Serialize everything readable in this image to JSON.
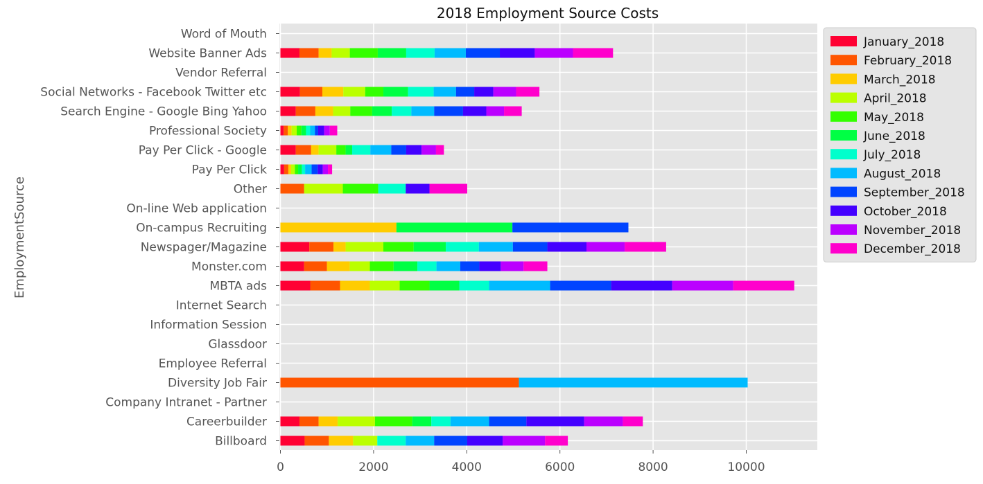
{
  "chart_data": {
    "type": "bar",
    "orientation": "horizontal",
    "stacked": true,
    "title": "2018 Employment Source Costs",
    "xlabel": "",
    "ylabel": "EmploymentSource",
    "xlim": [
      0,
      11550
    ],
    "xticks": [
      0,
      2000,
      4000,
      6000,
      8000,
      10000
    ],
    "xtick_labels": [
      "0",
      "2000",
      "4000",
      "6000",
      "8000",
      "10000"
    ],
    "grid": true,
    "legend_position": "right",
    "categories": [
      "Billboard",
      "Careerbuilder",
      "Company Intranet - Partner",
      "Diversity Job Fair",
      "Employee Referral",
      "Glassdoor",
      "Information Session",
      "Internet Search",
      "MBTA ads",
      "Monster.com",
      "Newspager/Magazine",
      "On-campus Recruiting",
      "On-line Web application",
      "Other",
      "Pay Per Click",
      "Pay Per Click - Google",
      "Professional Society",
      "Search Engine - Google Bing Yahoo",
      "Social Networks - Facebook Twitter etc",
      "Vendor Referral",
      "Website Banner Ads",
      "Word of Mouth"
    ],
    "series": [
      {
        "name": "January_2018",
        "color": "#ff0033",
        "values": [
          520,
          410,
          0,
          0,
          0,
          0,
          0,
          0,
          640,
          510,
          620,
          0,
          0,
          0,
          80,
          330,
          70,
          330,
          420,
          0,
          410,
          0
        ]
      },
      {
        "name": "February_2018",
        "color": "#ff5500",
        "values": [
          520,
          410,
          0,
          5120,
          0,
          0,
          0,
          0,
          640,
          490,
          520,
          0,
          0,
          510,
          90,
          330,
          90,
          420,
          480,
          0,
          410,
          0
        ]
      },
      {
        "name": "March_2018",
        "color": "#ffcc00",
        "values": [
          520,
          410,
          0,
          0,
          0,
          0,
          0,
          0,
          640,
          490,
          260,
          2490,
          0,
          0,
          60,
          160,
          80,
          380,
          450,
          0,
          280,
          0
        ]
      },
      {
        "name": "April_2018",
        "color": "#bbff00",
        "values": [
          520,
          800,
          0,
          0,
          0,
          0,
          0,
          0,
          640,
          430,
          810,
          0,
          0,
          830,
          80,
          380,
          110,
          370,
          470,
          0,
          390,
          0
        ]
      },
      {
        "name": "May_2018",
        "color": "#33ff00",
        "values": [
          0,
          800,
          0,
          0,
          0,
          0,
          0,
          0,
          640,
          510,
          650,
          0,
          0,
          760,
          70,
          200,
          100,
          470,
          390,
          0,
          600,
          0
        ]
      },
      {
        "name": "June_2018",
        "color": "#00ff44",
        "values": [
          0,
          410,
          0,
          0,
          0,
          0,
          0,
          0,
          640,
          510,
          690,
          2490,
          0,
          0,
          80,
          140,
          100,
          420,
          530,
          0,
          610,
          0
        ]
      },
      {
        "name": "July_2018",
        "color": "#00ffcc",
        "values": [
          610,
          410,
          0,
          0,
          0,
          0,
          0,
          0,
          640,
          410,
          710,
          0,
          0,
          590,
          70,
          390,
          90,
          420,
          550,
          0,
          610,
          0
        ]
      },
      {
        "name": "August_2018",
        "color": "#00bbff",
        "values": [
          610,
          830,
          0,
          4910,
          0,
          0,
          0,
          0,
          1310,
          510,
          730,
          0,
          0,
          0,
          140,
          450,
          100,
          490,
          480,
          0,
          670,
          0
        ]
      },
      {
        "name": "September_2018",
        "color": "#0044ff",
        "values": [
          710,
          800,
          0,
          0,
          0,
          0,
          0,
          0,
          1310,
          410,
          740,
          2490,
          0,
          0,
          130,
          320,
          70,
          620,
          390,
          0,
          730,
          0
        ]
      },
      {
        "name": "October_2018",
        "color": "#4400ff",
        "values": [
          760,
          1240,
          0,
          0,
          0,
          0,
          0,
          0,
          1310,
          460,
          840,
          0,
          0,
          510,
          110,
          330,
          130,
          500,
          410,
          0,
          750,
          0
        ]
      },
      {
        "name": "November_2018",
        "color": "#bb00ff",
        "values": [
          910,
          830,
          0,
          0,
          0,
          0,
          0,
          0,
          1310,
          490,
          820,
          0,
          0,
          0,
          110,
          310,
          120,
          380,
          490,
          0,
          820,
          0
        ]
      },
      {
        "name": "December_2018",
        "color": "#ff00cc",
        "values": [
          490,
          430,
          0,
          0,
          0,
          0,
          0,
          0,
          1310,
          510,
          890,
          0,
          0,
          810,
          90,
          170,
          160,
          380,
          500,
          0,
          860,
          0
        ]
      }
    ]
  }
}
